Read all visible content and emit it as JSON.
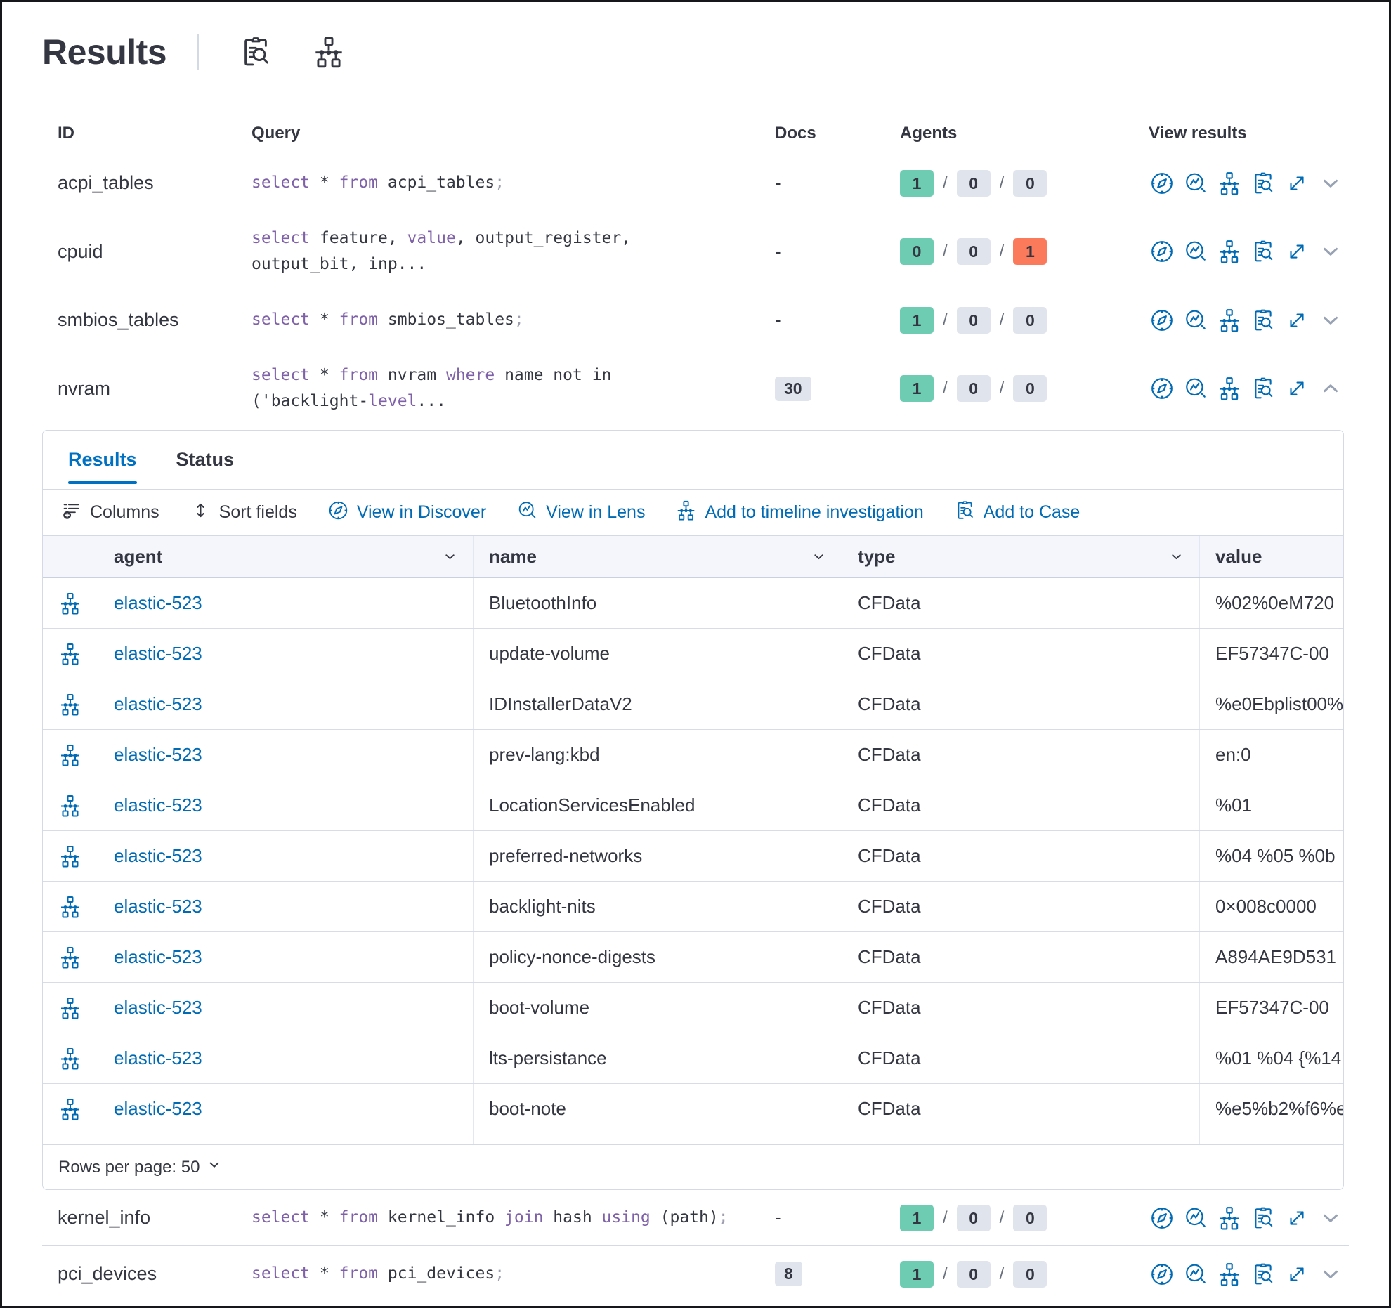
{
  "page": {
    "title": "Results"
  },
  "icons": {
    "title": [
      "inspect-icon",
      "timeline-icon"
    ],
    "view_results": [
      "discover-icon",
      "lens-icon",
      "timeline-icon",
      "case-icon",
      "expand-icon",
      "chevron-icon"
    ]
  },
  "outer_table": {
    "headers": {
      "id": "ID",
      "query": "Query",
      "docs": "Docs",
      "agents": "Agents",
      "view_results": "View results"
    },
    "rows": [
      {
        "id": "acpi_tables",
        "query_lines": [
          [
            {
              "t": "select",
              "c": "k"
            },
            {
              "t": " * ",
              "c": "d"
            },
            {
              "t": "from",
              "c": "k"
            },
            {
              "t": " acpi_tables",
              "c": "d"
            },
            {
              "t": ";",
              "c": "g"
            }
          ]
        ],
        "docs": {
          "text": "-",
          "badge": false
        },
        "agents": [
          {
            "v": "1",
            "s": "success"
          },
          {
            "v": "0",
            "s": "neutral"
          },
          {
            "v": "0",
            "s": "neutral"
          }
        ],
        "expanded": false
      },
      {
        "id": "cpuid",
        "query_lines": [
          [
            {
              "t": "select",
              "c": "k"
            },
            {
              "t": " feature, ",
              "c": "d"
            },
            {
              "t": "value",
              "c": "k"
            },
            {
              "t": ", output_register,",
              "c": "d"
            }
          ],
          [
            {
              "t": "output_bit, inp...",
              "c": "d"
            }
          ]
        ],
        "docs": {
          "text": "-",
          "badge": false
        },
        "agents": [
          {
            "v": "0",
            "s": "success"
          },
          {
            "v": "0",
            "s": "neutral"
          },
          {
            "v": "1",
            "s": "danger"
          }
        ],
        "expanded": false
      },
      {
        "id": "smbios_tables",
        "query_lines": [
          [
            {
              "t": "select",
              "c": "k"
            },
            {
              "t": " * ",
              "c": "d"
            },
            {
              "t": "from",
              "c": "k"
            },
            {
              "t": " smbios_tables",
              "c": "d"
            },
            {
              "t": ";",
              "c": "g"
            }
          ]
        ],
        "docs": {
          "text": "-",
          "badge": false
        },
        "agents": [
          {
            "v": "1",
            "s": "success"
          },
          {
            "v": "0",
            "s": "neutral"
          },
          {
            "v": "0",
            "s": "neutral"
          }
        ],
        "expanded": false
      },
      {
        "id": "nvram",
        "query_lines": [
          [
            {
              "t": "select",
              "c": "k"
            },
            {
              "t": " * ",
              "c": "d"
            },
            {
              "t": "from",
              "c": "k"
            },
            {
              "t": " nvram ",
              "c": "d"
            },
            {
              "t": "where",
              "c": "k"
            },
            {
              "t": " name not in",
              "c": "d"
            }
          ],
          [
            {
              "t": "('backlight-",
              "c": "d"
            },
            {
              "t": "level",
              "c": "k"
            },
            {
              "t": "...",
              "c": "d"
            }
          ]
        ],
        "docs": {
          "text": "30",
          "badge": true
        },
        "agents": [
          {
            "v": "1",
            "s": "success"
          },
          {
            "v": "0",
            "s": "neutral"
          },
          {
            "v": "0",
            "s": "neutral"
          }
        ],
        "expanded": true
      },
      {
        "id": "kernel_info",
        "query_lines": [
          [
            {
              "t": "select",
              "c": "k"
            },
            {
              "t": " * ",
              "c": "d"
            },
            {
              "t": "from",
              "c": "k"
            },
            {
              "t": " kernel_info ",
              "c": "d"
            },
            {
              "t": "join",
              "c": "k"
            },
            {
              "t": " hash ",
              "c": "d"
            },
            {
              "t": "using",
              "c": "k"
            },
            {
              "t": " (path)",
              "c": "d"
            },
            {
              "t": ";",
              "c": "g"
            }
          ]
        ],
        "docs": {
          "text": "-",
          "badge": false
        },
        "agents": [
          {
            "v": "1",
            "s": "success"
          },
          {
            "v": "0",
            "s": "neutral"
          },
          {
            "v": "0",
            "s": "neutral"
          }
        ],
        "expanded": false
      },
      {
        "id": "pci_devices",
        "query_lines": [
          [
            {
              "t": "select",
              "c": "k"
            },
            {
              "t": " * ",
              "c": "d"
            },
            {
              "t": "from",
              "c": "k"
            },
            {
              "t": " pci_devices",
              "c": "d"
            },
            {
              "t": ";",
              "c": "g"
            }
          ]
        ],
        "docs": {
          "text": "8",
          "badge": true
        },
        "agents": [
          {
            "v": "1",
            "s": "success"
          },
          {
            "v": "0",
            "s": "neutral"
          },
          {
            "v": "0",
            "s": "neutral"
          }
        ],
        "expanded": false
      }
    ]
  },
  "panel": {
    "tabs": [
      {
        "label": "Results",
        "active": true
      },
      {
        "label": "Status",
        "active": false
      }
    ],
    "toolbar": [
      {
        "label": "Columns"
      },
      {
        "label": "Sort fields"
      },
      {
        "label": "View in Discover"
      },
      {
        "label": "View in Lens"
      },
      {
        "label": "Add to timeline investigation"
      },
      {
        "label": "Add to Case"
      }
    ],
    "table": {
      "columns": [
        "agent",
        "name",
        "type",
        "value"
      ],
      "rows": [
        {
          "agent": "elastic-523",
          "name": "BluetoothInfo",
          "type": "CFData",
          "value": "%02%0eM720"
        },
        {
          "agent": "elastic-523",
          "name": "update-volume",
          "type": "CFData",
          "value": "EF57347C-00"
        },
        {
          "agent": "elastic-523",
          "name": "IDInstallerDataV2",
          "type": "CFData",
          "value": "%e0Ebplist00%"
        },
        {
          "agent": "elastic-523",
          "name": "prev-lang:kbd",
          "type": "CFData",
          "value": "en:0"
        },
        {
          "agent": "elastic-523",
          "name": "LocationServicesEnabled",
          "type": "CFData",
          "value": "%01"
        },
        {
          "agent": "elastic-523",
          "name": "preferred-networks",
          "type": "CFData",
          "value": "%04 %05 %0b"
        },
        {
          "agent": "elastic-523",
          "name": "backlight-nits",
          "type": "CFData",
          "value": "0×008c0000"
        },
        {
          "agent": "elastic-523",
          "name": "policy-nonce-digests",
          "type": "CFData",
          "value": "A894AE9D531"
        },
        {
          "agent": "elastic-523",
          "name": "boot-volume",
          "type": "CFData",
          "value": "EF57347C-00"
        },
        {
          "agent": "elastic-523",
          "name": "lts-persistance",
          "type": "CFData",
          "value": "%01 %04 {%14"
        },
        {
          "agent": "elastic-523",
          "name": "boot-note",
          "type": "CFData",
          "value": "%e5%b2%f6%e"
        }
      ]
    },
    "rows_per_page_label": "Rows per page: 50"
  },
  "colors": {
    "primary": "#006BB4",
    "tab_active": "#0071C2",
    "keyword": "#7F61A8",
    "text": "#343741",
    "success_badge": "#6DCCB1",
    "neutral_badge": "#E0E4EC",
    "danger_badge": "#FB7A5C",
    "border": "#D3DAE6"
  }
}
